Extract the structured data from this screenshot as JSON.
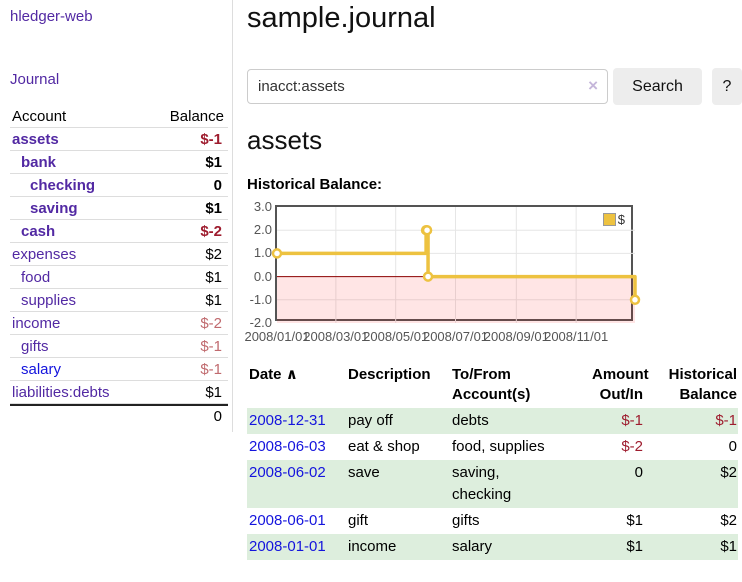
{
  "colors": {
    "link_purple": "#5229a3",
    "link_blue": "#1414dd",
    "negative_strong": "#9e1c2e",
    "negative_soft": "#c06a6e",
    "row_green": "#ddeedd",
    "series_gold": "#edc240",
    "negative_region_pink": "rgba(255,0,0,0.10)",
    "zero_line_red": "#8b0000"
  },
  "sidebar": {
    "brand": "hledger-web",
    "journal_link": "Journal",
    "accounts": {
      "headers": {
        "account": "Account",
        "balance": "Balance"
      },
      "rows": [
        {
          "account": "assets",
          "balance": "$-1"
        },
        {
          "account": "bank",
          "balance": "$1"
        },
        {
          "account": "checking",
          "balance": "0"
        },
        {
          "account": "saving",
          "balance": "$1"
        },
        {
          "account": "cash",
          "balance": "$-2"
        },
        {
          "account": "expenses",
          "balance": "$2"
        },
        {
          "account": "food",
          "balance": "$1"
        },
        {
          "account": "supplies",
          "balance": "$1"
        },
        {
          "account": "income",
          "balance": "$-2"
        },
        {
          "account": "gifts",
          "balance": "$-1"
        },
        {
          "account": "salary",
          "balance": "$-1"
        },
        {
          "account": "liabilities:debts",
          "balance": "$1"
        }
      ],
      "total": "0"
    }
  },
  "main": {
    "title": "sample.journal",
    "search": {
      "value": "inacct:assets",
      "clear_icon": "×",
      "search_button": "Search",
      "help_button": "?"
    },
    "section_title": "assets",
    "chart_caption": "Historical Balance:"
  },
  "chart_data": {
    "type": "line",
    "title": "Historical Balance",
    "step": true,
    "series": [
      {
        "name": "$",
        "color": "#edc240",
        "points": [
          [
            "2008-01-01",
            1
          ],
          [
            "2008-06-01",
            2
          ],
          [
            "2008-06-02",
            2
          ],
          [
            "2008-06-03",
            0
          ],
          [
            "2008-12-31",
            -1
          ]
        ]
      }
    ],
    "xrange": [
      "2008-01-01",
      "2008-12-31"
    ],
    "ylim": [
      -2,
      3
    ],
    "yticks": [
      3,
      2,
      1,
      0,
      -1,
      -2
    ],
    "xticks": [
      "2008/01/01",
      "2008/03/01",
      "2008/05/01",
      "2008/07/01",
      "2008/09/01",
      "2008/11/01"
    ],
    "grid": true,
    "legend_position": "top-right",
    "zero_line_color": "#8b0000",
    "negative_region_fill": "rgba(255,0,0,0.10)"
  },
  "transactions": {
    "headers": {
      "date": "Date",
      "sort_icon": "∧",
      "description": "Description",
      "account": "To/From Account(s)",
      "amount": "Amount Out/In",
      "balance": "Historical Balance"
    },
    "rows": [
      {
        "date": "2008-12-31",
        "description": "pay off",
        "account": "debts",
        "amount": "$-1",
        "balance": "$-1"
      },
      {
        "date": "2008-06-03",
        "description": "eat & shop",
        "account": "food, supplies",
        "amount": "$-2",
        "balance": "0"
      },
      {
        "date": "2008-06-02",
        "description": "save",
        "account": "saving, checking",
        "amount": "0",
        "balance": "$2"
      },
      {
        "date": "2008-06-01",
        "description": "gift",
        "account": "gifts",
        "amount": "$1",
        "balance": "$2"
      },
      {
        "date": "2008-01-01",
        "description": "income",
        "account": "salary",
        "amount": "$1",
        "balance": "$1"
      }
    ]
  }
}
